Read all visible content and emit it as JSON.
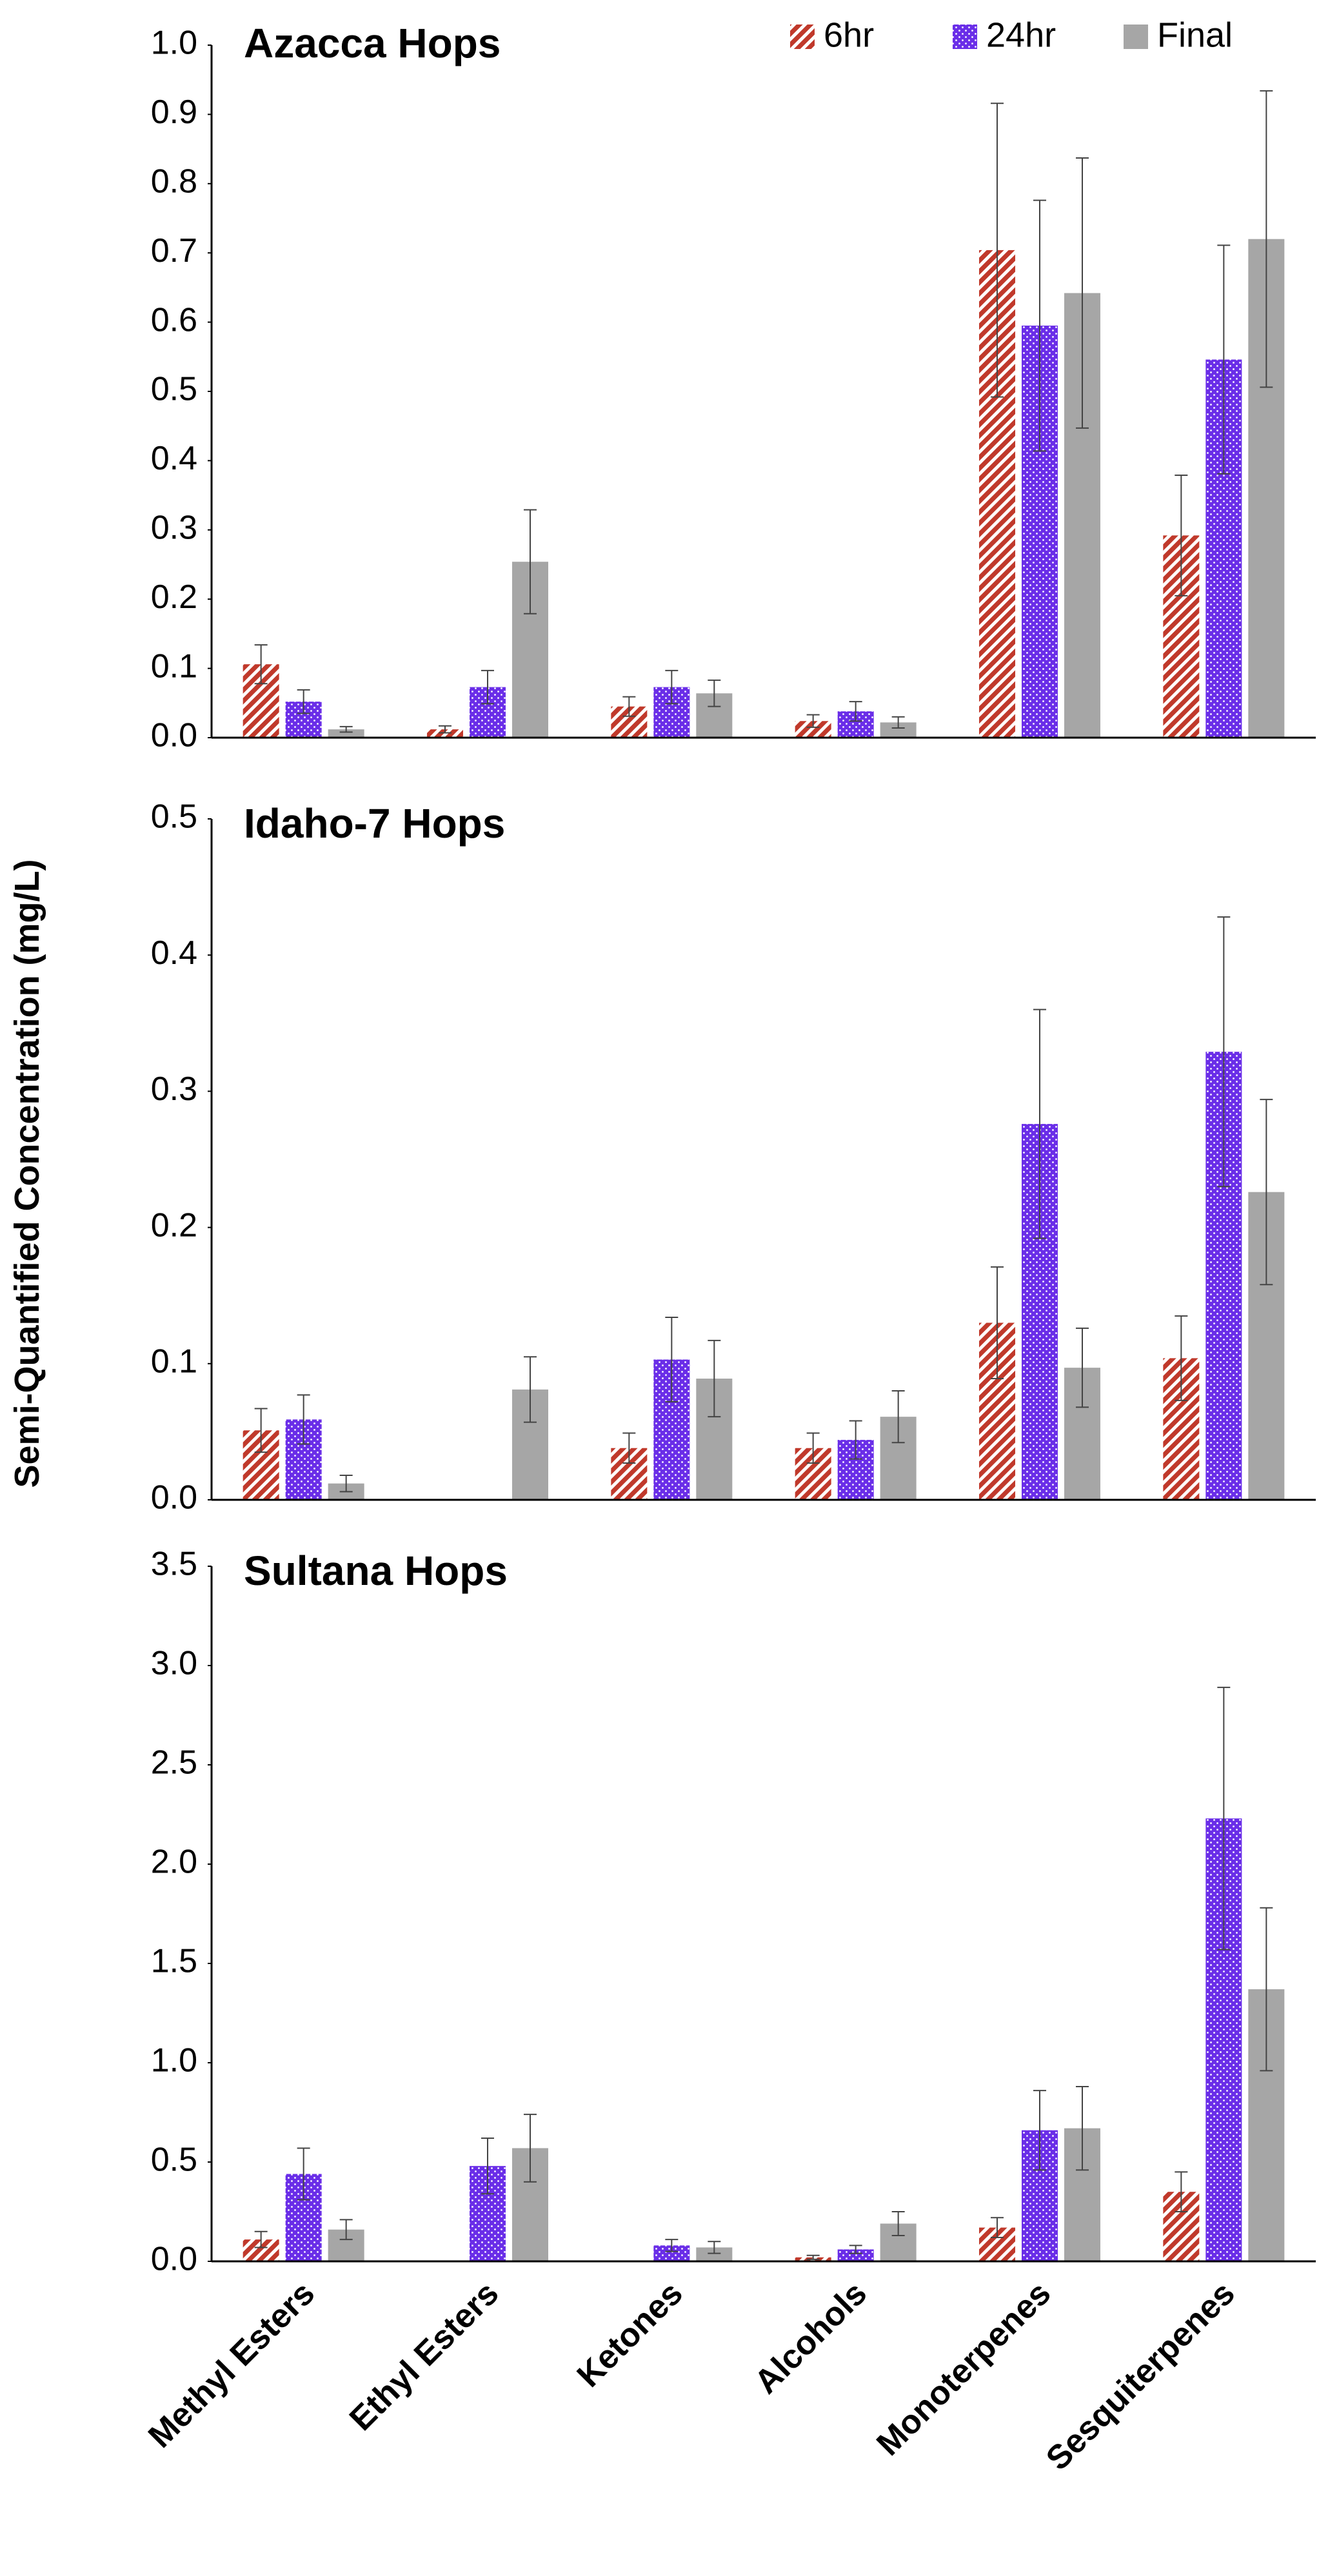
{
  "chart_data": {
    "type": "bar",
    "ylabel": "Semi-Quantified Concentration (mg/L)",
    "categories": [
      "Methyl Esters",
      "Ethyl Esters",
      "Ketones",
      "Alcohols",
      "Monoterpenes",
      "Sesquiterpenes"
    ],
    "series": [
      {
        "name": "6hr",
        "color": "#c0392b",
        "pattern": "hatch"
      },
      {
        "name": "24hr",
        "color": "#6a2ee8",
        "pattern": "dots"
      },
      {
        "name": "Final",
        "color": "#a6a6a6",
        "pattern": "solid"
      }
    ],
    "panels": [
      {
        "title": "Azacca Hops",
        "ylim": [
          0,
          1
        ],
        "yticks": [
          {
            "value": 0,
            "label": "0.0"
          },
          0.1,
          0.2,
          0.3,
          0.4,
          0.5,
          0.6,
          0.7,
          0.8,
          0.9,
          {
            "value": 1,
            "label": "1.0"
          }
        ],
        "series": [
          {
            "values": [
              0.106,
              0.012,
              0.045,
              0.024,
              0.704,
              0.292
            ],
            "errors": [
              0.028,
              0.005,
              0.014,
              0.009,
              0.212,
              0.087
            ]
          },
          {
            "values": [
              0.052,
              0.073,
              0.073,
              0.038,
              0.595,
              0.546
            ],
            "errors": [
              0.017,
              0.024,
              0.024,
              0.014,
              0.181,
              0.165
            ]
          },
          {
            "values": [
              0.012,
              0.254,
              0.064,
              0.022,
              0.642,
              0.72
            ],
            "errors": [
              0.004,
              0.075,
              0.019,
              0.008,
              0.195,
              0.214
            ]
          }
        ]
      },
      {
        "title": "Idaho-7 Hops",
        "ylim": [
          0,
          0.5
        ],
        "yticks": [
          {
            "value": 0,
            "label": "0.0"
          },
          0.1,
          0.2,
          0.3,
          0.4,
          0.5
        ],
        "series": [
          {
            "values": [
              0.051,
              null,
              0.038,
              0.038,
              0.13,
              0.104
            ],
            "errors": [
              0.016,
              null,
              0.011,
              0.011,
              0.041,
              0.031
            ]
          },
          {
            "values": [
              0.059,
              null,
              0.103,
              0.044,
              0.276,
              0.329
            ],
            "errors": [
              0.018,
              null,
              0.031,
              0.014,
              0.084,
              0.099
            ]
          },
          {
            "values": [
              0.012,
              0.081,
              0.089,
              0.061,
              0.097,
              0.226
            ],
            "errors": [
              0.006,
              0.024,
              0.028,
              0.019,
              0.029,
              0.068
            ]
          }
        ]
      },
      {
        "title": "Sultana Hops",
        "ylim": [
          0,
          3.5
        ],
        "yticks": [
          {
            "value": 0,
            "label": "0.0"
          },
          0.5,
          {
            "value": 1,
            "label": "1.0"
          },
          1.5,
          {
            "value": 2,
            "label": "2.0"
          },
          2.5,
          {
            "value": 3,
            "label": "3.0"
          },
          3.5
        ],
        "series": [
          {
            "values": [
              0.11,
              null,
              null,
              0.02,
              0.17,
              0.35
            ],
            "errors": [
              0.04,
              null,
              null,
              0.01,
              0.05,
              0.1
            ]
          },
          {
            "values": [
              0.44,
              0.48,
              0.08,
              0.06,
              0.66,
              2.23
            ],
            "errors": [
              0.13,
              0.14,
              0.03,
              0.02,
              0.2,
              0.66
            ]
          },
          {
            "values": [
              0.16,
              0.57,
              0.07,
              0.19,
              0.67,
              1.37
            ],
            "errors": [
              0.05,
              0.17,
              0.03,
              0.06,
              0.21,
              0.41
            ]
          }
        ]
      }
    ]
  }
}
